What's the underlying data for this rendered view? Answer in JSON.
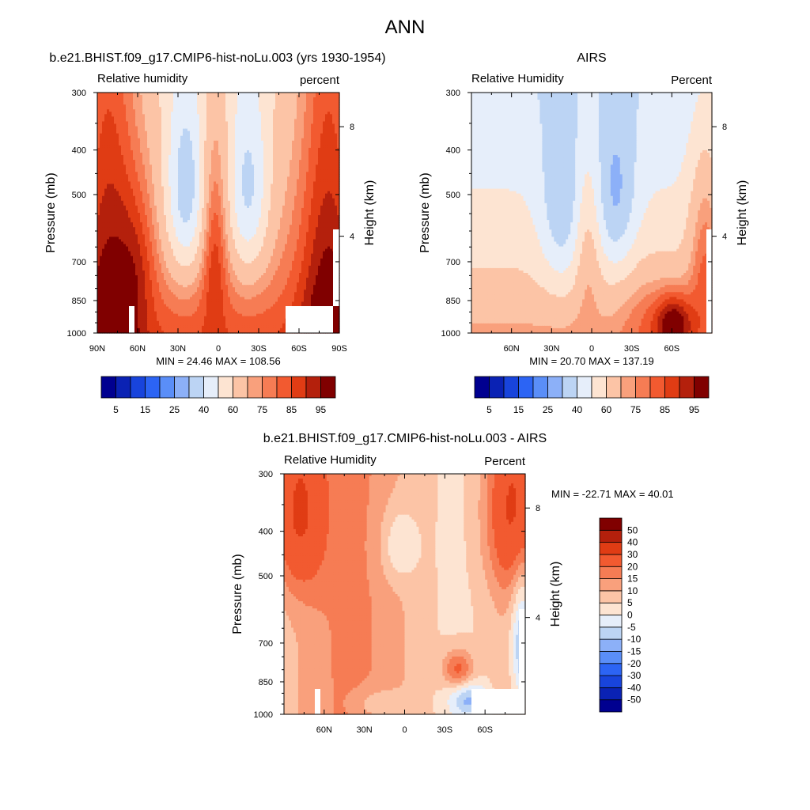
{
  "figure": {
    "title": "ANN"
  },
  "colors": {
    "abs_scale": [
      "#000090",
      "#0a22b4",
      "#1844dc",
      "#2c64f4",
      "#5a8ef8",
      "#8cb0f8",
      "#bcd4f4",
      "#e6eefa",
      "#fde4d2",
      "#fcc4a6",
      "#f9a07c",
      "#f67c54",
      "#f25a30",
      "#e03c14",
      "#b4200c",
      "#800000"
    ],
    "diff_scale": [
      "#000090",
      "#0a22b4",
      "#1844dc",
      "#2c64f4",
      "#5a8ef8",
      "#8cb0f8",
      "#bcd4f4",
      "#e6eefa",
      "#fde4d2",
      "#fcc4a6",
      "#f9a07c",
      "#f67c54",
      "#f25a30",
      "#e03c14",
      "#b4200c",
      "#800000"
    ]
  },
  "chart_data": [
    {
      "type": "heatmap",
      "id": "model",
      "title": "b.e21.BHIST.f09_g17.CMIP6-hist-noLu.003 (yrs 1930-1954)",
      "left_label": "Relative humidity",
      "right_label": "percent",
      "ylabel": "Pressure (mb)",
      "y2label": "Height (km)",
      "y_ticks": [
        "300",
        "400",
        "500",
        "700",
        "850",
        "1000"
      ],
      "y_values": [
        300,
        400,
        500,
        700,
        850,
        1000
      ],
      "y2_ticks": [
        "8",
        "4"
      ],
      "x_ticks": [
        "90N",
        "60N",
        "30N",
        "0",
        "30S",
        "60S",
        "90S"
      ],
      "x_values": [
        90,
        60,
        30,
        0,
        -30,
        -60,
        -90
      ],
      "min_max": "MIN =  24.46  MAX = 108.56",
      "colorbar_labels": [
        "5",
        "15",
        "25",
        "40",
        "60",
        "75",
        "85",
        "95"
      ],
      "levels": [
        5,
        10,
        15,
        20,
        25,
        30,
        40,
        50,
        60,
        70,
        75,
        80,
        85,
        90,
        95
      ],
      "lat_range": [
        90,
        -90
      ],
      "pressure_range": [
        300,
        1000
      ]
    },
    {
      "type": "heatmap",
      "id": "obs",
      "title": "AIRS",
      "left_label": "Relative Humidity",
      "right_label": "Percent",
      "ylabel": "Pressure (mb)",
      "y2label": "Height (km)",
      "y_ticks": [
        "300",
        "400",
        "500",
        "700",
        "850",
        "1000"
      ],
      "y_values": [
        300,
        400,
        500,
        700,
        850,
        1000
      ],
      "y2_ticks": [
        "8",
        "4"
      ],
      "x_ticks": [
        "60N",
        "30N",
        "0",
        "30S",
        "60S"
      ],
      "x_values": [
        60,
        30,
        0,
        -30,
        -60
      ],
      "min_max": "MIN =  20.70  MAX = 137.19",
      "colorbar_labels": [
        "5",
        "15",
        "25",
        "40",
        "60",
        "75",
        "85",
        "95"
      ],
      "levels": [
        5,
        10,
        15,
        20,
        25,
        30,
        40,
        50,
        60,
        70,
        75,
        80,
        85,
        90,
        95
      ],
      "lat_range": [
        90,
        -90
      ],
      "pressure_range": [
        300,
        1000
      ]
    },
    {
      "type": "heatmap",
      "id": "diff",
      "title": "b.e21.BHIST.f09_g17.CMIP6-hist-noLu.003 - AIRS",
      "left_label": "Relative Humidity",
      "right_label": "Percent",
      "ylabel": "Pressure (mb)",
      "y2label": "Height (km)",
      "y_ticks": [
        "300",
        "400",
        "500",
        "700",
        "850",
        "1000"
      ],
      "y_values": [
        300,
        400,
        500,
        700,
        850,
        1000
      ],
      "y2_ticks": [
        "8",
        "4"
      ],
      "x_ticks": [
        "60N",
        "30N",
        "0",
        "30S",
        "60S"
      ],
      "x_values": [
        60,
        30,
        0,
        -30,
        -60
      ],
      "min_max": "MIN = -22.71  MAX =  40.01",
      "colorbar_labels": [
        "50",
        "40",
        "30",
        "20",
        "15",
        "10",
        "5",
        "0",
        "-5",
        "-10",
        "-15",
        "-20",
        "-30",
        "-40",
        "-50"
      ],
      "levels": [
        -50,
        -40,
        -30,
        -20,
        -15,
        -10,
        -5,
        0,
        5,
        10,
        15,
        20,
        30,
        40,
        50
      ],
      "lat_range": [
        90,
        -90
      ],
      "pressure_range": [
        300,
        1000
      ]
    }
  ]
}
